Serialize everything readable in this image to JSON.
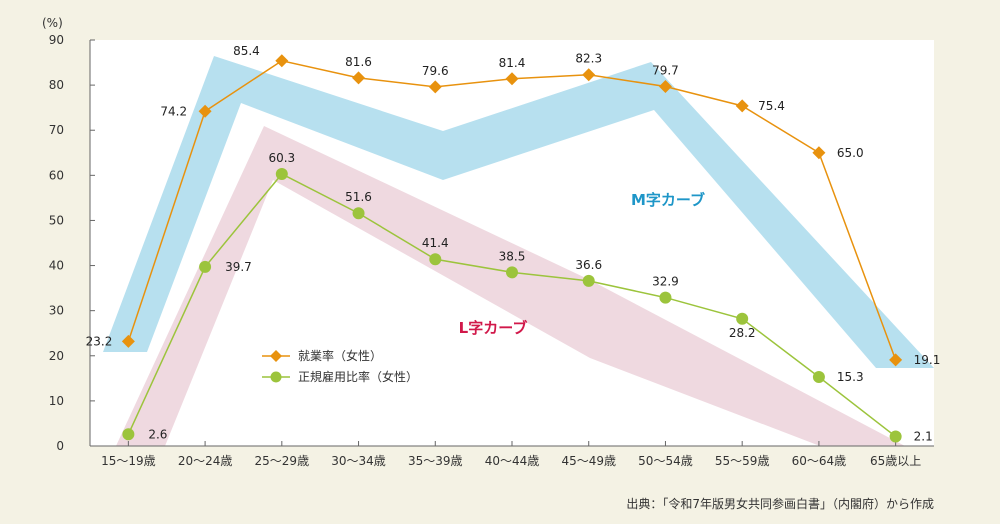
{
  "chart_data": {
    "type": "line",
    "ylabel": "(%)",
    "ylim": [
      0,
      90
    ],
    "yticks": [
      0,
      10,
      20,
      30,
      40,
      50,
      60,
      70,
      80,
      90
    ],
    "grid": false,
    "legend_position": "center-left",
    "categories": [
      "15～19歳",
      "20～24歳",
      "25～29歳",
      "30～34歳",
      "35～39歳",
      "40～44歳",
      "45～49歳",
      "50～54歳",
      "55～59歳",
      "60～64歳",
      "65歳以上"
    ],
    "series": [
      {
        "name": "就業率（女性）",
        "color": "#e8920e",
        "marker": "diamond",
        "values": [
          23.2,
          74.2,
          85.4,
          81.6,
          79.6,
          81.4,
          82.3,
          79.7,
          75.4,
          65.0,
          19.1
        ],
        "labels": [
          "23.2",
          "74.2",
          "85.4",
          "81.6",
          "79.6",
          "81.4",
          "82.3",
          "79.7",
          "75.4",
          "65.0",
          "19.1"
        ]
      },
      {
        "name": "正規雇用比率（女性）",
        "color": "#9cc43c",
        "marker": "circle",
        "values": [
          2.6,
          39.7,
          60.3,
          51.6,
          41.4,
          38.5,
          36.6,
          32.9,
          28.2,
          15.3,
          2.1
        ],
        "labels": [
          "2.6",
          "39.7",
          "60.3",
          "51.6",
          "41.4",
          "38.5",
          "36.6",
          "32.9",
          "28.2",
          "15.3",
          "2.1"
        ]
      }
    ],
    "annotations": [
      {
        "text": "M字カーブ",
        "color": "#1e96c8"
      },
      {
        "text": "L字カーブ",
        "color": "#d1184a"
      }
    ],
    "band_colors": {
      "m_curve": "#b7e0ef",
      "l_curve": "#efd9e0"
    },
    "source": "出典：「令和7年版男女共同参画白書」（内閣府）から作成"
  }
}
